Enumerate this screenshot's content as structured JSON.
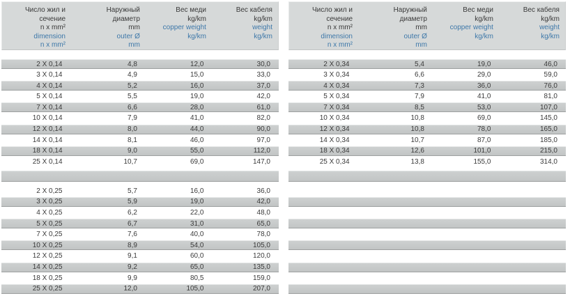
{
  "colors": {
    "header_bg": "#d6d9d9",
    "stripe_top": "#cdd0d0",
    "stripe_bottom": "#c2c5c5",
    "stripe_edge_light": "#e6e8e8",
    "stripe_edge_dark": "#9da0a0",
    "text_dark": "#3a3a3a",
    "text_blue": "#3e78a9"
  },
  "columns": [
    {
      "key": "dimension",
      "ru": [
        "Число жил и",
        "сечение",
        "n x mm²"
      ],
      "en": [
        "dimension",
        "n x mm²"
      ]
    },
    {
      "key": "outer-diameter",
      "ru": [
        "Наружный",
        "диаметр",
        "mm"
      ],
      "en": [
        "outer Ø",
        "mm"
      ]
    },
    {
      "key": "copper-weight",
      "ru": [
        "Вес меди",
        "kg/km"
      ],
      "en": [
        "copper weight",
        "kg/km"
      ]
    },
    {
      "key": "cable-weight",
      "ru": [
        "Вес кабеля",
        "kg/km"
      ],
      "en": [
        "weight",
        "kg/km"
      ]
    }
  ],
  "chart_data": {
    "type": "table",
    "note": "two tables; separator and trailing empty stripe rows encoded as null"
  },
  "tables": [
    {
      "name": "cable-table-0-14-and-0-25",
      "rows": [
        [
          "2 X 0,14",
          "4,8",
          "12,0",
          "30,0"
        ],
        [
          "3 X 0,14",
          "4,9",
          "15,0",
          "33,0"
        ],
        [
          "4 X 0,14",
          "5,2",
          "16,0",
          "37,0"
        ],
        [
          "5 X 0,14",
          "5,5",
          "19,0",
          "42,0"
        ],
        [
          "7 X 0,14",
          "6,6",
          "28,0",
          "61,0"
        ],
        [
          "10 X 0,14",
          "7,9",
          "41,0",
          "82,0"
        ],
        [
          "12 X 0,14",
          "8,0",
          "44,0",
          "90,0"
        ],
        [
          "14 X 0,14",
          "8,1",
          "46,0",
          "97,0"
        ],
        [
          "18 X 0,14",
          "9,0",
          "55,0",
          "112,0"
        ],
        [
          "25 X 0,14",
          "10,7",
          "69,0",
          "147,0"
        ],
        null,
        [
          "2 X 0,25",
          "5,7",
          "16,0",
          "36,0"
        ],
        [
          "3 X 0,25",
          "5,9",
          "19,0",
          "42,0"
        ],
        [
          "4 X 0,25",
          "6,2",
          "22,0",
          "48,0"
        ],
        [
          "5 X 0,25",
          "6,7",
          "31,0",
          "65,0"
        ],
        [
          "7 X 0,25",
          "7,6",
          "40,0",
          "78,0"
        ],
        [
          "10 X 0,25",
          "8,9",
          "54,0",
          "105,0"
        ],
        [
          "12 X 0,25",
          "9,1",
          "60,0",
          "120,0"
        ],
        [
          "14 X 0,25",
          "9,2",
          "65,0",
          "135,0"
        ],
        [
          "18 X 0,25",
          "9,9",
          "80,5",
          "159,0"
        ],
        [
          "25 X 0,25",
          "12,0",
          "105,0",
          "207,0"
        ]
      ]
    },
    {
      "name": "cable-table-0-34",
      "rows": [
        [
          "2 X 0,34",
          "5,4",
          "19,0",
          "46,0"
        ],
        [
          "3 X 0,34",
          "6,6",
          "29,0",
          "59,0"
        ],
        [
          "4 X 0,34",
          "7,3",
          "36,0",
          "76,0"
        ],
        [
          "5 X 0,34",
          "7,9",
          "41,0",
          "81,0"
        ],
        [
          "7 X 0,34",
          "8,5",
          "53,0",
          "107,0"
        ],
        [
          "10 X 0,34",
          "10,8",
          "69,0",
          "145,0"
        ],
        [
          "12 X 0,34",
          "10,8",
          "78,0",
          "165,0"
        ],
        [
          "14 X 0,34",
          "10,7",
          "87,0",
          "185,0"
        ],
        [
          "18 X 0,34",
          "12,6",
          "101,0",
          "215,0"
        ],
        [
          "25 X 0,34",
          "13,8",
          "155,0",
          "314,0"
        ],
        null,
        null,
        null,
        null,
        null,
        null,
        null,
        null,
        null,
        null,
        null
      ]
    }
  ]
}
